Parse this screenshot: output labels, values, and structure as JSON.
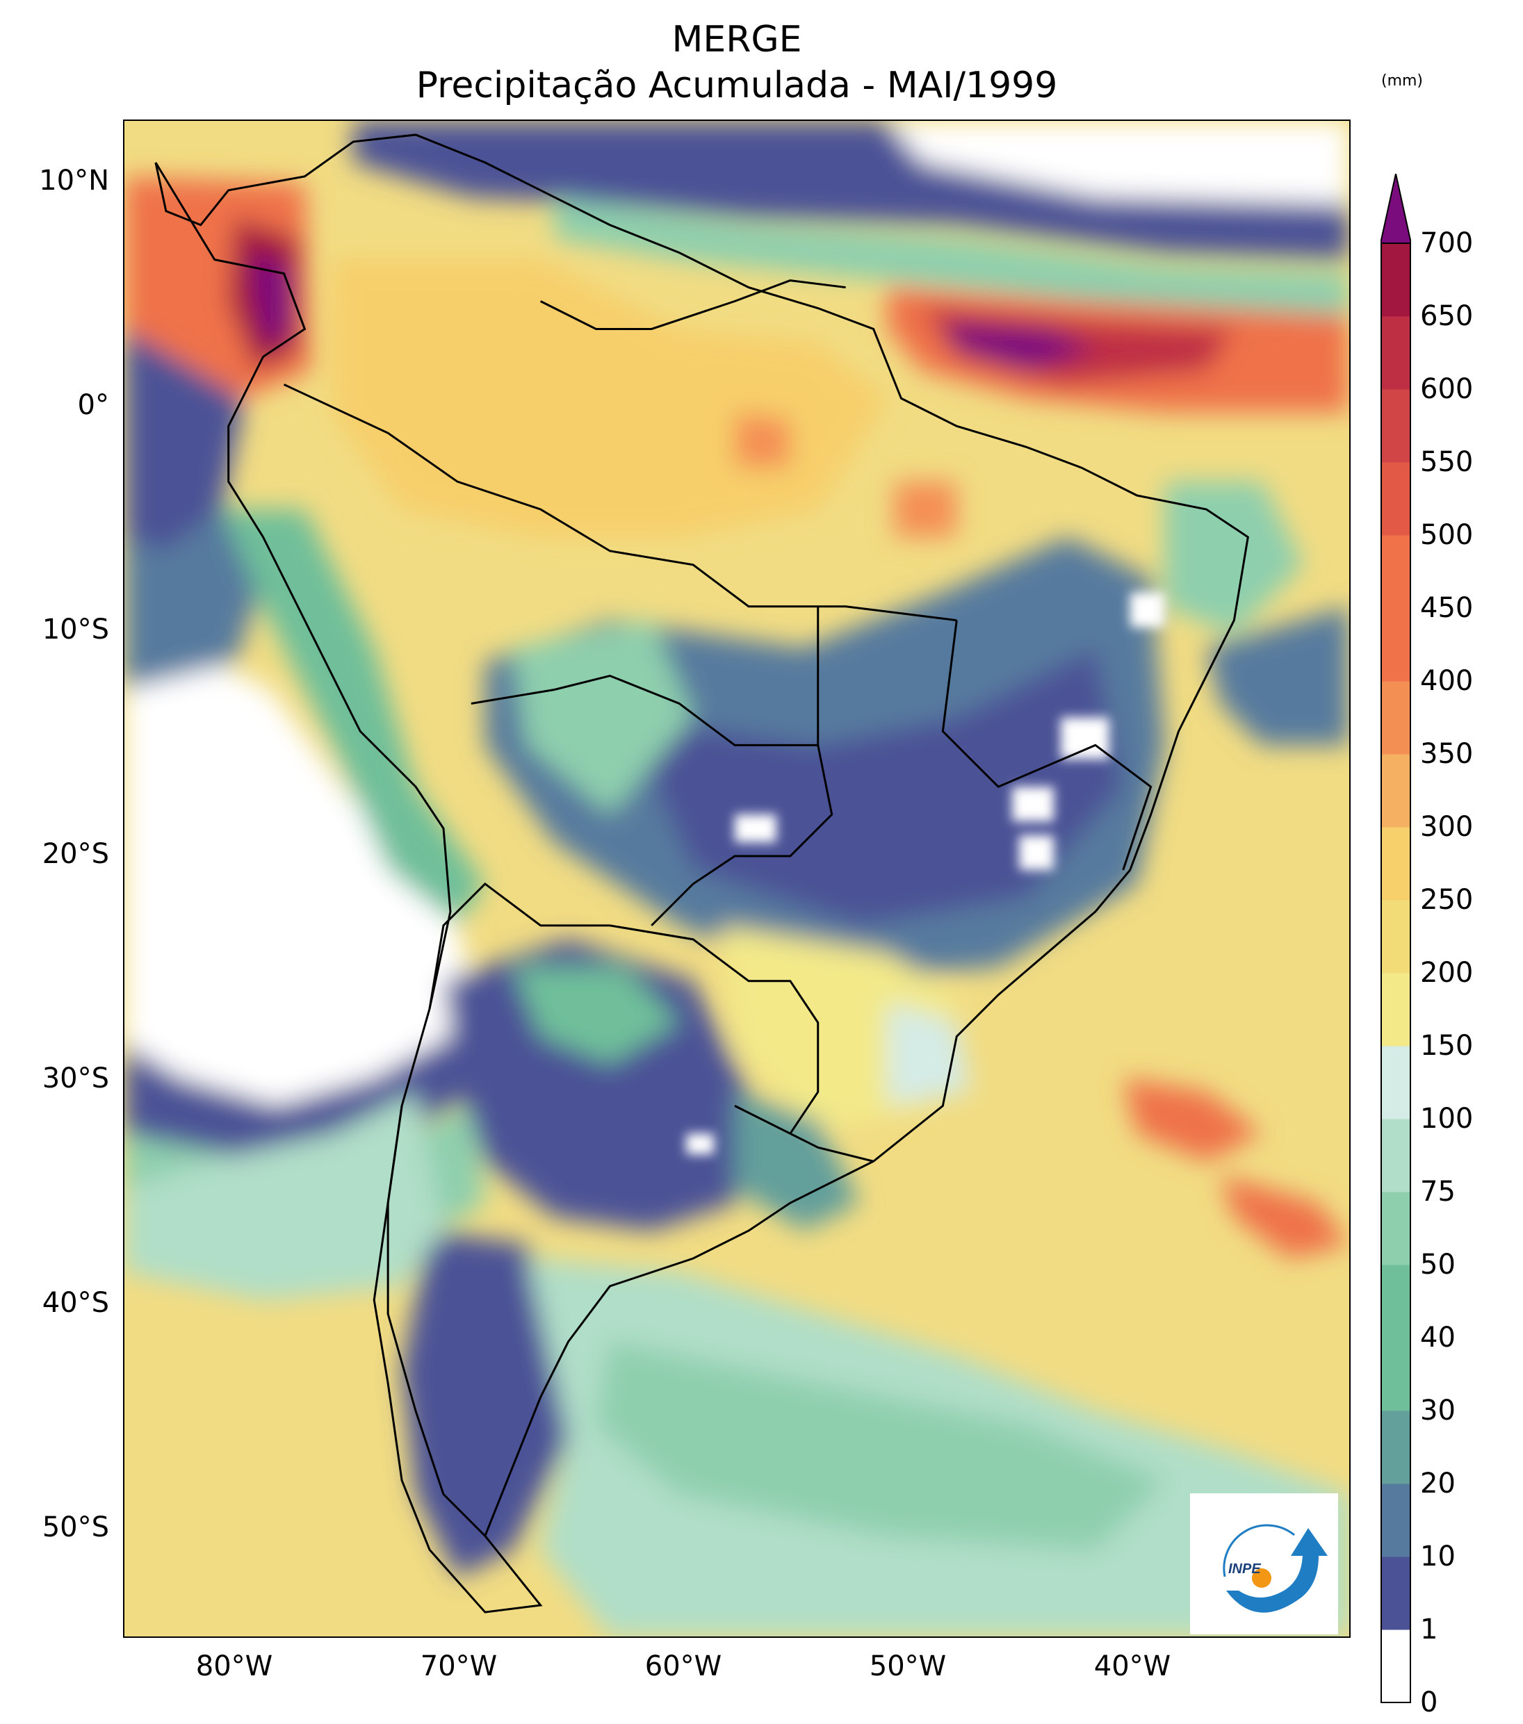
{
  "title": {
    "line1": "MERGE",
    "line2": "Precipitação Acumulada - MAI/1999"
  },
  "axes": {
    "lat_labels": [
      "10°N",
      "0°",
      "10°S",
      "20°S",
      "30°S",
      "40°S",
      "50°S"
    ],
    "lon_labels": [
      "80°W",
      "70°W",
      "60°W",
      "50°W",
      "40°W"
    ]
  },
  "colorbar": {
    "unit": "(mm)",
    "ticks": [
      "0",
      "1",
      "10",
      "20",
      "30",
      "40",
      "50",
      "75",
      "100",
      "150",
      "200",
      "250",
      "300",
      "350",
      "400",
      "450",
      "500",
      "550",
      "600",
      "650",
      "700"
    ],
    "colors": [
      "#ffffff",
      "#4b5396",
      "#567a9e",
      "#639f9b",
      "#6fbf9a",
      "#8ecfad",
      "#b0dec8",
      "#d4ebe6",
      "#f3e989",
      "#f2dc78",
      "#f7cf6b",
      "#f5b062",
      "#f48f54",
      "#ef7248",
      "#e25a45",
      "#d24546",
      "#bf2f44",
      "#a2173f"
    ],
    "extend_color": "#7b0c7e"
  },
  "logo": {
    "text": "INPE"
  }
}
